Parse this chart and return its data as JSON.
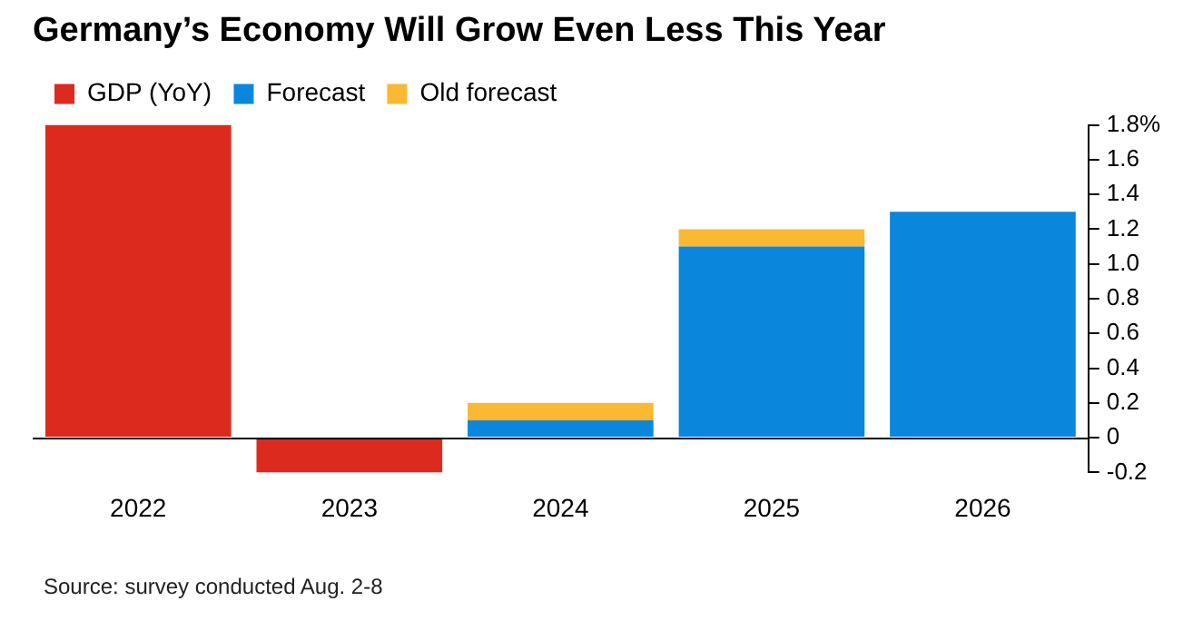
{
  "chart_data": {
    "type": "bar",
    "title": "Germany’s Economy Will Grow Even Less This Year",
    "categories": [
      "2022",
      "2023",
      "2024",
      "2025",
      "2026"
    ],
    "series": [
      {
        "name": "GDP (YoY)",
        "color": "#dd2a1f",
        "values": [
          1.8,
          -0.2,
          null,
          null,
          null
        ]
      },
      {
        "name": "Forecast",
        "color": "#0a87dd",
        "values": [
          null,
          null,
          0.1,
          1.1,
          1.3
        ]
      },
      {
        "name": "Old forecast",
        "color": "#fbb832",
        "values": [
          null,
          null,
          0.1,
          0.1,
          null
        ]
      }
    ],
    "stacked": true,
    "ylim": [
      -0.2,
      1.8
    ],
    "yticks": [
      {
        "value": 1.8,
        "label": "1.8%"
      },
      {
        "value": 1.6,
        "label": "1.6"
      },
      {
        "value": 1.4,
        "label": "1.4"
      },
      {
        "value": 1.2,
        "label": "1.2"
      },
      {
        "value": 1.0,
        "label": "1.0"
      },
      {
        "value": 0.8,
        "label": "0.8"
      },
      {
        "value": 0.6,
        "label": "0.6"
      },
      {
        "value": 0.4,
        "label": "0.4"
      },
      {
        "value": 0.2,
        "label": "0.2"
      },
      {
        "value": 0,
        "label": "0"
      },
      {
        "value": -0.2,
        "label": "-0.2"
      }
    ],
    "grid": false,
    "legend": "top left",
    "annotations": [
      "Source: survey conducted Aug. 2-8"
    ]
  }
}
